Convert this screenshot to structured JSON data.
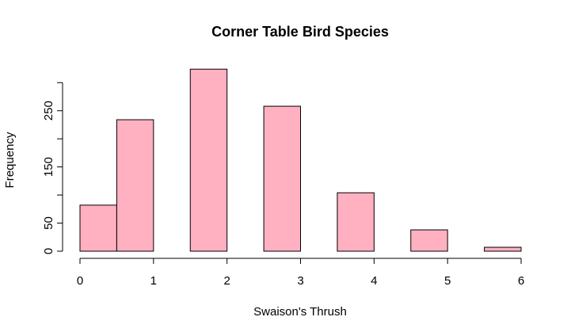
{
  "chart_data": {
    "type": "histogram",
    "title": "Corner Table Bird Species",
    "x_label": "Swaison's Thrush",
    "y_label": "Frequency",
    "bins": [
      0,
      0.5,
      1,
      1.5,
      2,
      2.5,
      3,
      3.5,
      4,
      4.5,
      5,
      5.5,
      6
    ],
    "counts": [
      82,
      234,
      0,
      324,
      0,
      258,
      0,
      104,
      0,
      38,
      0,
      7
    ],
    "color": "#ffb0c1",
    "xlim": [
      0,
      6
    ],
    "xticks": [
      0,
      1,
      2,
      3,
      4,
      5,
      6
    ],
    "ylim": [
      0,
      330
    ],
    "yticks": [
      0,
      50,
      150,
      250
    ],
    "ytick_marks": [
      0,
      50,
      100,
      150,
      200,
      250,
      300
    ]
  }
}
